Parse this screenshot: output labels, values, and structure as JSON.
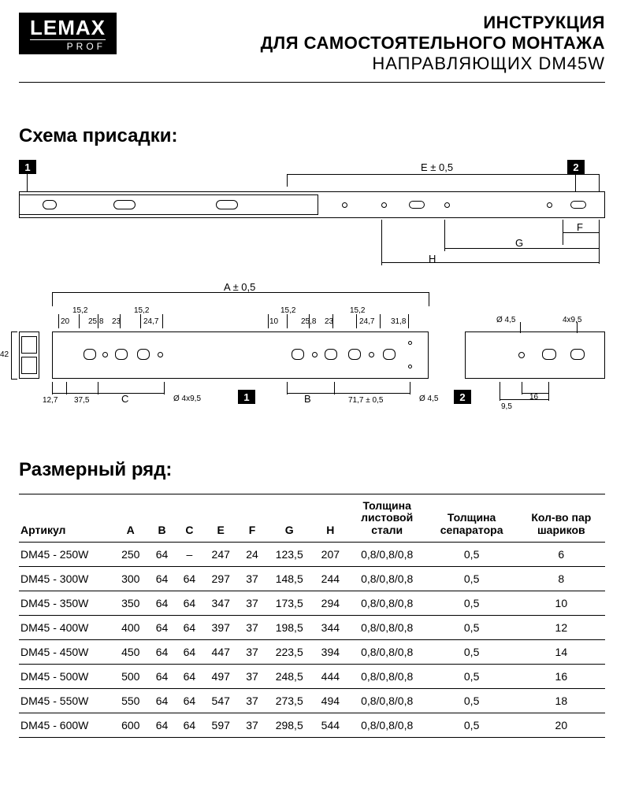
{
  "logo": {
    "main": "LEMAX",
    "sub": "PROF"
  },
  "title": {
    "line1": "ИНСТРУКЦИЯ",
    "line2": "ДЛЯ САМОСТОЯТЕЛЬНОГО МОНТАЖА",
    "line3": "НАПРАВЛЯЮЩИХ DM45W"
  },
  "section1": "Схема присадки:",
  "section2": "Размерный ряд:",
  "diagram": {
    "tag1": "1",
    "tag2": "2",
    "top_labels": {
      "E": "E ± 0,5",
      "F": "F",
      "G": "G",
      "H": "H"
    },
    "bottom_labels": {
      "A": "A ± 0,5",
      "h42": "42",
      "w127": "12,7",
      "w375": "37,5",
      "s152a": "15,2",
      "s152b": "15,2",
      "s152c": "15,2",
      "s152d": "15,2",
      "s20": "20",
      "s258a": "25,8",
      "s23a": "23",
      "s247a": "24,7",
      "s10": "10",
      "s258b": "25,8",
      "s23b": "23",
      "s247b": "24,7",
      "s318": "31,8",
      "C": "C",
      "B": "B",
      "d495": "Ø 4x9,5",
      "d45": "Ø 4,5",
      "s717": "71,7 ± 0,5",
      "r_d45": "Ø 4,5",
      "r_495": "4x9,5",
      "r_95": "9,5",
      "r_16": "16"
    }
  },
  "table": {
    "columns": [
      "Артикул",
      "A",
      "B",
      "C",
      "E",
      "F",
      "G",
      "H",
      "Толщина листовой стали",
      "Толщина сепаратора",
      "Кол-во пар шариков"
    ],
    "rows": [
      [
        "DM45 - 250W",
        "250",
        "64",
        "–",
        "247",
        "24",
        "123,5",
        "207",
        "0,8/0,8/0,8",
        "0,5",
        "6"
      ],
      [
        "DM45 - 300W",
        "300",
        "64",
        "64",
        "297",
        "37",
        "148,5",
        "244",
        "0,8/0,8/0,8",
        "0,5",
        "8"
      ],
      [
        "DM45 - 350W",
        "350",
        "64",
        "64",
        "347",
        "37",
        "173,5",
        "294",
        "0,8/0,8/0,8",
        "0,5",
        "10"
      ],
      [
        "DM45 - 400W",
        "400",
        "64",
        "64",
        "397",
        "37",
        "198,5",
        "344",
        "0,8/0,8/0,8",
        "0,5",
        "12"
      ],
      [
        "DM45 - 450W",
        "450",
        "64",
        "64",
        "447",
        "37",
        "223,5",
        "394",
        "0,8/0,8/0,8",
        "0,5",
        "14"
      ],
      [
        "DM45 - 500W",
        "500",
        "64",
        "64",
        "497",
        "37",
        "248,5",
        "444",
        "0,8/0,8/0,8",
        "0,5",
        "16"
      ],
      [
        "DM45 - 550W",
        "550",
        "64",
        "64",
        "547",
        "37",
        "273,5",
        "494",
        "0,8/0,8/0,8",
        "0,5",
        "18"
      ],
      [
        "DM45 - 600W",
        "600",
        "64",
        "64",
        "597",
        "37",
        "298,5",
        "544",
        "0,8/0,8/0,8",
        "0,5",
        "20"
      ]
    ]
  },
  "style": {
    "page_bg": "#ffffff",
    "text_color": "#000000",
    "line_color": "#000000",
    "logo_bg": "#000000",
    "logo_fg": "#ffffff",
    "tag_bg": "#000000",
    "tag_fg": "#ffffff",
    "title_fontsize": 22,
    "section_fontsize": 24,
    "table_fontsize": 14,
    "diagram_label_fontsize": 13,
    "diagram_small_fontsize": 10
  }
}
